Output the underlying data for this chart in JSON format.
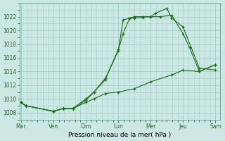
{
  "xlabel": "Pression niveau de la mer( hPa )",
  "background_color": "#cce8e4",
  "plot_bg_color": "#cce8e4",
  "grid_color": "#aacccc",
  "line_color": "#1a6e1a",
  "xtick_labels": [
    "Mar",
    "Ven",
    "Dim",
    "Lun",
    "Mer",
    "Jeu",
    "Sam"
  ],
  "xtick_positions": [
    0,
    1,
    2,
    3,
    4,
    5,
    6
  ],
  "ylim": [
    1007.0,
    1024.0
  ],
  "ytick_values": [
    1008,
    1010,
    1012,
    1014,
    1016,
    1018,
    1020,
    1022
  ],
  "series1": {
    "x": [
      0.0,
      0.15,
      1.0,
      1.3,
      1.6,
      2.0,
      2.25,
      2.6,
      3.0,
      3.15,
      3.35,
      3.5,
      3.75,
      4.0,
      4.15,
      4.5,
      4.65,
      5.0,
      5.5,
      6.0
    ],
    "y": [
      1009.5,
      1009.0,
      1008.2,
      1008.6,
      1008.6,
      1009.8,
      1011.0,
      1012.8,
      1017.2,
      1019.5,
      1021.8,
      1021.8,
      1021.9,
      1022.0,
      1022.5,
      1023.2,
      1021.8,
      1020.5,
      1014.5,
      1014.2
    ]
  },
  "series2": {
    "x": [
      0.0,
      0.15,
      1.0,
      1.3,
      1.6,
      2.0,
      2.25,
      2.6,
      3.0,
      3.15,
      3.35,
      3.5,
      3.75,
      4.0,
      4.3,
      4.65,
      5.0,
      5.2,
      5.5,
      6.0
    ],
    "y": [
      1009.5,
      1009.0,
      1008.2,
      1008.6,
      1008.6,
      1010.0,
      1011.0,
      1013.0,
      1017.0,
      1021.5,
      1021.8,
      1022.0,
      1022.0,
      1022.0,
      1022.0,
      1022.2,
      1019.5,
      1017.5,
      1014.0,
      1015.0
    ]
  },
  "series3": {
    "x": [
      0.0,
      0.15,
      1.0,
      1.3,
      1.6,
      2.0,
      2.25,
      2.6,
      3.0,
      3.5,
      4.0,
      4.65,
      5.0,
      5.5,
      6.0
    ],
    "y": [
      1009.5,
      1009.0,
      1008.2,
      1008.6,
      1008.6,
      1009.5,
      1010.0,
      1010.8,
      1011.0,
      1011.5,
      1012.5,
      1013.5,
      1014.2,
      1014.0,
      1015.0
    ]
  }
}
